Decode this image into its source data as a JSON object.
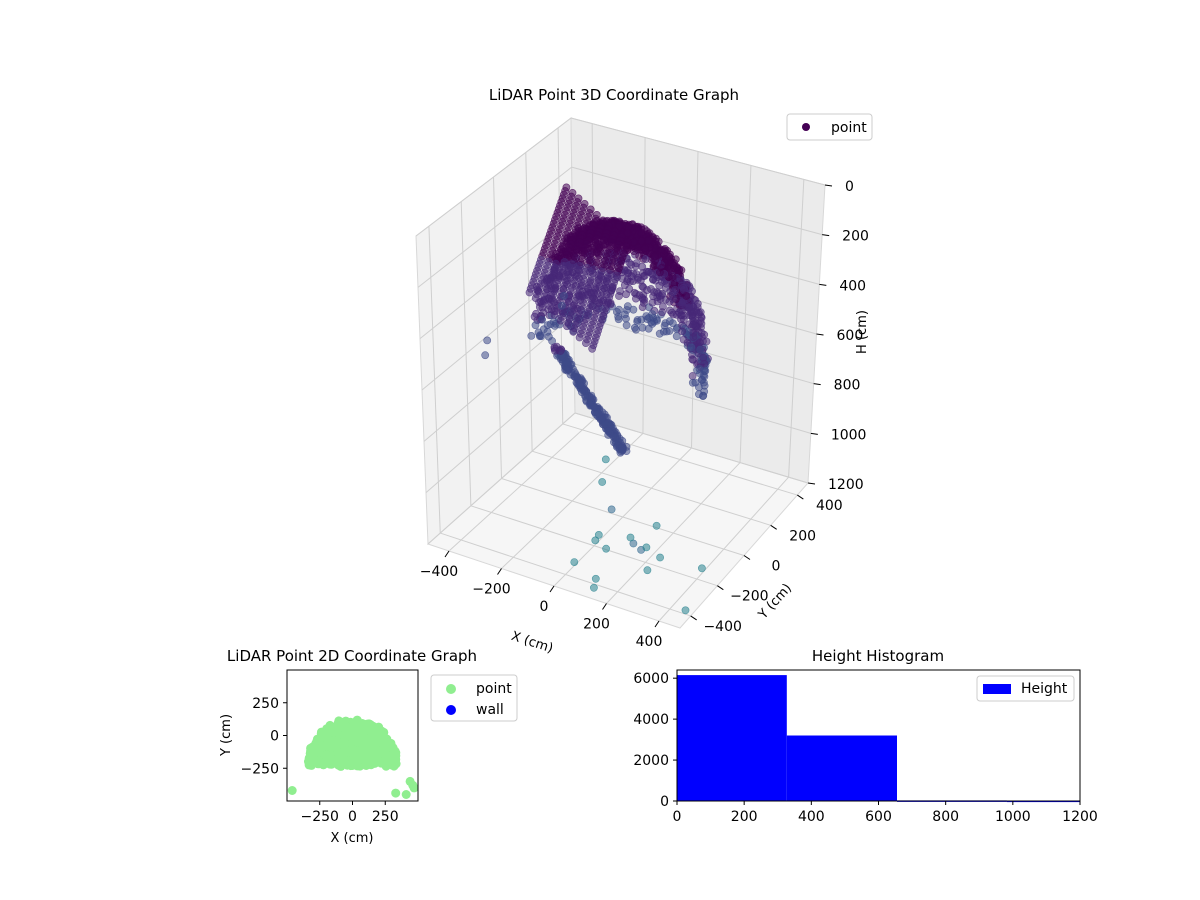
{
  "chart_data": [
    {
      "type": "scatter",
      "dimension": "3d",
      "title": "LiDAR Point 3D Coordinate Graph",
      "xlabel": "X (cm)",
      "ylabel": "Y (cm)",
      "zlabel": "H (cm)",
      "x_ticks": [
        "−400",
        "−200",
        "0",
        "200",
        "400"
      ],
      "y_ticks": [
        "−400",
        "−200",
        "0",
        "200",
        "400"
      ],
      "z_ticks": [
        "0",
        "200",
        "400",
        "600",
        "800",
        "1000",
        "1200"
      ],
      "xlim": [
        -480,
        480
      ],
      "ylim": [
        -480,
        480
      ],
      "zlim": [
        0,
        1200
      ],
      "z_inverted": true,
      "grid": true,
      "colormap": "viridis",
      "legend": {
        "position": "top-right",
        "entries": [
          {
            "name": "point",
            "color": "#440154"
          }
        ]
      },
      "series": [
        {
          "name": "point",
          "dense_shape": "dome of points centred on the origin, radius about 330 cm, heights 0 to 650 cm",
          "points": [
            {
              "x": -470,
              "y": -110,
              "z": 580
            },
            {
              "x": -460,
              "y": -140,
              "z": 620
            },
            {
              "x": -380,
              "y": 30,
              "z": 610
            },
            {
              "x": -340,
              "y": 180,
              "z": 520
            },
            {
              "x": -330,
              "y": 150,
              "z": 540
            },
            {
              "x": -90,
              "y": 40,
              "z": 1020
            },
            {
              "x": -70,
              "y": -20,
              "z": 1070
            },
            {
              "x": -10,
              "y": -320,
              "z": 1200
            },
            {
              "x": 100,
              "y": -370,
              "z": 1200
            },
            {
              "x": 120,
              "y": -420,
              "z": 1200
            },
            {
              "x": 60,
              "y": -300,
              "z": 1100
            },
            {
              "x": 80,
              "y": -260,
              "z": 1150
            },
            {
              "x": 250,
              "y": -380,
              "z": 1000
            },
            {
              "x": 290,
              "y": -400,
              "z": 1000
            },
            {
              "x": 330,
              "y": -430,
              "z": 1050
            },
            {
              "x": 90,
              "y": -330,
              "z": 1050
            },
            {
              "x": 200,
              "y": -120,
              "z": 1100
            },
            {
              "x": 120,
              "y": -160,
              "z": 1150
            },
            {
              "x": 160,
              "y": -120,
              "z": 1200
            },
            {
              "x": 230,
              "y": -150,
              "z": 1200
            },
            {
              "x": 90,
              "y": -240,
              "z": 1000
            },
            {
              "x": 420,
              "y": -200,
              "z": 1150
            },
            {
              "x": 450,
              "y": -380,
              "z": 1200
            }
          ]
        }
      ]
    },
    {
      "type": "scatter",
      "title": "LiDAR Point 2D Coordinate Graph",
      "xlabel": "X (cm)",
      "ylabel": "Y (cm)",
      "x_ticks": [
        "−250",
        "0",
        "250"
      ],
      "y_ticks": [
        "250",
        "0",
        "−250"
      ],
      "xlim": [
        -500,
        500
      ],
      "ylim": [
        -500,
        500
      ],
      "legend": {
        "position": "outside-right",
        "entries": [
          {
            "name": "point",
            "color": "#90ee90"
          },
          {
            "name": "wall",
            "color": "#0000ff"
          }
        ]
      },
      "series": [
        {
          "name": "point",
          "color": "#90ee90",
          "dense_region": {
            "center": [
              0,
              -220
            ],
            "radius_x": 340,
            "radius_y": 330,
            "shape": "upper half-ellipse spanning y from -400 to 110"
          },
          "points": [
            {
              "x": -460,
              "y": -420
            },
            {
              "x": 330,
              "y": -440
            },
            {
              "x": 410,
              "y": -450
            },
            {
              "x": 470,
              "y": -400
            },
            {
              "x": 440,
              "y": -350
            },
            {
              "x": 460,
              "y": -380
            }
          ]
        },
        {
          "name": "wall",
          "color": "#0000ff",
          "points": []
        }
      ]
    },
    {
      "type": "bar",
      "subtype": "histogram",
      "title": "Height Histogram",
      "xlabel": "",
      "ylabel": "",
      "x_ticks": [
        "0",
        "200",
        "400",
        "600",
        "800",
        "1000",
        "1200"
      ],
      "y_ticks": [
        "0",
        "2000",
        "4000",
        "6000"
      ],
      "xlim": [
        0,
        1200
      ],
      "ylim": [
        0,
        6400
      ],
      "legend": {
        "position": "top-right",
        "entries": [
          {
            "name": "Height",
            "color": "#0000ff"
          }
        ]
      },
      "bins": [
        {
          "from": 0,
          "to": 327,
          "count": 6150
        },
        {
          "from": 327,
          "to": 655,
          "count": 3200
        },
        {
          "from": 655,
          "to": 982,
          "count": 30
        },
        {
          "from": 982,
          "to": 1200,
          "count": 20
        }
      ]
    }
  ]
}
